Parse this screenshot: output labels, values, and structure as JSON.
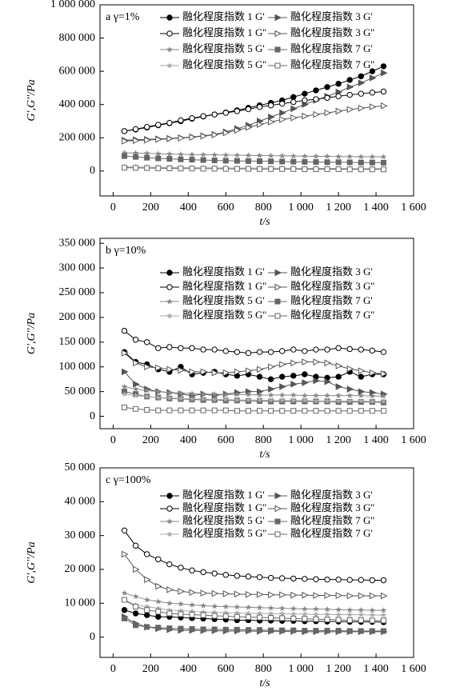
{
  "chart_data": [
    {
      "type": "line",
      "panel_label": "a γ=1%",
      "x_label": "t/s",
      "y_label": "G',G''/Pa",
      "x": [
        60,
        120,
        180,
        240,
        300,
        360,
        420,
        480,
        540,
        600,
        660,
        720,
        780,
        840,
        900,
        960,
        1020,
        1080,
        1140,
        1200,
        1260,
        1320,
        1380,
        1440
      ],
      "xlim": [
        -70,
        1600
      ],
      "ylim": [
        -150000,
        1000000
      ],
      "xticks": [
        0,
        200,
        400,
        600,
        800,
        {
          "value": 1000,
          "label": "1 000"
        },
        {
          "value": 1200,
          "label": "1 200"
        },
        {
          "value": 1400,
          "label": "1 400"
        },
        {
          "value": 1600,
          "label": "1 600"
        }
      ],
      "yticks": [
        0,
        {
          "value": 200000,
          "label": "200 000"
        },
        {
          "value": 400000,
          "label": "400 000"
        },
        {
          "value": 600000,
          "label": "600 000"
        },
        {
          "value": 800000,
          "label": "800 000"
        },
        {
          "value": 1000000,
          "label": "1 000 000"
        }
      ],
      "series": [
        {
          "name": "融化程度指数 1 G'",
          "color": "#000000",
          "marker": "circle",
          "filled": true,
          "values": [
            240000,
            250000,
            262000,
            275000,
            288000,
            300000,
            315000,
            328000,
            340000,
            352000,
            365000,
            380000,
            395000,
            410000,
            425000,
            445000,
            465000,
            485000,
            505000,
            525000,
            548000,
            570000,
            600000,
            630000
          ]
        },
        {
          "name": "融化程度指数 3 G'",
          "color": "#555555",
          "marker": "triangle",
          "filled": true,
          "values": [
            185000,
            188000,
            190000,
            193000,
            196000,
            200000,
            205000,
            212000,
            220000,
            235000,
            255000,
            275000,
            300000,
            325000,
            350000,
            375000,
            400000,
            425000,
            450000,
            475000,
            505000,
            530000,
            560000,
            590000
          ]
        },
        {
          "name": "融化程度指数 1 G''",
          "color": "#000000",
          "marker": "circle",
          "filled": false,
          "values": [
            240000,
            252000,
            265000,
            278000,
            290000,
            305000,
            318000,
            330000,
            340000,
            350000,
            360000,
            372000,
            385000,
            395000,
            405000,
            415000,
            425000,
            432000,
            440000,
            450000,
            458000,
            465000,
            472000,
            478000
          ]
        },
        {
          "name": "融化程度指数 3 G''",
          "color": "#555555",
          "marker": "triangle",
          "filled": false,
          "values": [
            180000,
            183000,
            186000,
            190000,
            194000,
            198000,
            203000,
            210000,
            218000,
            230000,
            245000,
            262000,
            280000,
            295000,
            310000,
            320000,
            330000,
            340000,
            350000,
            360000,
            370000,
            378000,
            386000,
            392000
          ]
        },
        {
          "name": "融化程度指数 5 G'",
          "color": "#888888",
          "marker": "star",
          "filled": true,
          "values": [
            110000,
            108000,
            106000,
            104000,
            102000,
            100000,
            99000,
            98000,
            97000,
            96000,
            95000,
            94000,
            93000,
            92000,
            91000,
            90000,
            89000,
            88000,
            88000,
            87000,
            87000,
            86000,
            86000,
            85000
          ]
        },
        {
          "name": "融化程度指数 7 G'",
          "color": "#666666",
          "marker": "square",
          "filled": true,
          "values": [
            90000,
            85000,
            80000,
            76000,
            73000,
            70000,
            68000,
            66000,
            64000,
            62000,
            61000,
            60000,
            59000,
            58000,
            57000,
            56000,
            55000,
            54000,
            53000,
            53000,
            52000,
            51000,
            51000,
            50000
          ]
        },
        {
          "name": "融化程度指数 5 G''",
          "color": "#aaaaaa",
          "marker": "star",
          "filled": true,
          "values": [
            25000,
            24000,
            23000,
            22000,
            21000,
            21000,
            20000,
            20000,
            19000,
            19000,
            18000,
            18000,
            18000,
            17000,
            17000,
            17000,
            16000,
            16000,
            16000,
            16000,
            15000,
            15000,
            15000,
            15000
          ]
        },
        {
          "name": "融化程度指数 7 G''",
          "color": "#666666",
          "marker": "square",
          "filled": false,
          "values": [
            20000,
            19000,
            18000,
            17000,
            16000,
            15000,
            15000,
            14000,
            14000,
            13000,
            13000,
            13000,
            12000,
            12000,
            12000,
            12000,
            11000,
            11000,
            11000,
            11000,
            10000,
            10000,
            10000,
            10000
          ]
        }
      ]
    },
    {
      "type": "line",
      "panel_label": "b γ=10%",
      "x_label": "t/s",
      "y_label": "G',G''/Pa",
      "x": [
        60,
        120,
        180,
        240,
        300,
        360,
        420,
        480,
        540,
        600,
        660,
        720,
        780,
        840,
        900,
        960,
        1020,
        1080,
        1140,
        1200,
        1260,
        1320,
        1380,
        1440
      ],
      "xlim": [
        -70,
        1600
      ],
      "ylim": [
        -25000,
        360000
      ],
      "xticks": [
        0,
        200,
        400,
        600,
        800,
        {
          "value": 1000,
          "label": "1 000"
        },
        {
          "value": 1200,
          "label": "1 200"
        },
        {
          "value": 1400,
          "label": "1 400"
        },
        {
          "value": 1600,
          "label": "1 600"
        }
      ],
      "yticks": [
        0,
        {
          "value": 50000,
          "label": "50 000"
        },
        {
          "value": 100000,
          "label": "100 000"
        },
        {
          "value": 150000,
          "label": "150 000"
        },
        {
          "value": 200000,
          "label": "200 000"
        },
        {
          "value": 250000,
          "label": "250 000"
        },
        {
          "value": 300000,
          "label": "300 000"
        },
        {
          "value": 350000,
          "label": "350 000"
        }
      ],
      "series": [
        {
          "name": "融化程度指数 1 G'",
          "color": "#000000",
          "marker": "circle",
          "filled": true,
          "values": [
            130000,
            110000,
            105000,
            95000,
            90000,
            100000,
            85000,
            88000,
            90000,
            85000,
            82000,
            85000,
            80000,
            75000,
            80000,
            82000,
            85000,
            80000,
            78000,
            80000,
            90000,
            80000,
            85000,
            85000
          ]
        },
        {
          "name": "融化程度指数 3 G'",
          "color": "#555555",
          "marker": "triangle",
          "filled": true,
          "values": [
            90000,
            65000,
            55000,
            50000,
            48000,
            45000,
            42000,
            45000,
            42000,
            45000,
            48000,
            50000,
            50000,
            55000,
            60000,
            65000,
            68000,
            72000,
            70000,
            60000,
            55000,
            50000,
            48000,
            45000
          ]
        },
        {
          "name": "融化程度指数 1 G''",
          "color": "#000000",
          "marker": "circle",
          "filled": false,
          "values": [
            173000,
            155000,
            150000,
            138000,
            140000,
            138000,
            138000,
            135000,
            135000,
            132000,
            130000,
            128000,
            130000,
            130000,
            132000,
            135000,
            132000,
            135000,
            135000,
            138000,
            136000,
            135000,
            133000,
            130000
          ]
        },
        {
          "name": "融化程度指数 3 G''",
          "color": "#555555",
          "marker": "triangle",
          "filled": false,
          "values": [
            128000,
            108000,
            100000,
            98000,
            95000,
            93000,
            90000,
            90000,
            88000,
            88000,
            90000,
            92000,
            95000,
            100000,
            105000,
            108000,
            110000,
            110000,
            108000,
            102000,
            96000,
            92000,
            88000,
            86000
          ]
        },
        {
          "name": "融化程度指数 5 G'",
          "color": "#888888",
          "marker": "star",
          "filled": true,
          "values": [
            60000,
            55000,
            52000,
            50000,
            48000,
            47000,
            46000,
            45000,
            45000,
            44000,
            44000,
            44000,
            43000,
            43000,
            43000,
            43000,
            42000,
            42000,
            42000,
            42000,
            42000,
            42000,
            41000,
            41000
          ]
        },
        {
          "name": "融化程度指数 7 G'",
          "color": "#666666",
          "marker": "square",
          "filled": true,
          "values": [
            50000,
            45000,
            40000,
            38000,
            36000,
            35000,
            34000,
            33000,
            33000,
            32000,
            32000,
            31000,
            31000,
            30000,
            30000,
            30000,
            30000,
            30000,
            30000,
            29000,
            29000,
            29000,
            29000,
            28000
          ]
        },
        {
          "name": "融化程度指数 5 G''",
          "color": "#aaaaaa",
          "marker": "star",
          "filled": true,
          "values": [
            45000,
            42000,
            40000,
            38000,
            37000,
            36000,
            35000,
            35000,
            34000,
            34000,
            33000,
            33000,
            33000,
            32000,
            32000,
            32000,
            32000,
            31000,
            31000,
            31000,
            31000,
            31000,
            30000,
            30000
          ]
        },
        {
          "name": "融化程度指数 7 G''",
          "color": "#666666",
          "marker": "square",
          "filled": false,
          "values": [
            18000,
            15000,
            13000,
            12000,
            12000,
            12000,
            12000,
            12000,
            12000,
            12000,
            11000,
            11000,
            11000,
            11000,
            11000,
            11000,
            11000,
            11000,
            11000,
            11000,
            11000,
            11000,
            11000,
            11000
          ]
        }
      ]
    },
    {
      "type": "line",
      "panel_label": "c γ=100%",
      "x_label": "t/s",
      "y_label": "G',G''/Pa",
      "x": [
        60,
        120,
        180,
        240,
        300,
        360,
        420,
        480,
        540,
        600,
        660,
        720,
        780,
        840,
        900,
        960,
        1020,
        1080,
        1140,
        1200,
        1260,
        1320,
        1380,
        1440
      ],
      "xlim": [
        -70,
        1600
      ],
      "ylim": [
        -6000,
        50000
      ],
      "xticks": [
        0,
        200,
        400,
        600,
        800,
        {
          "value": 1000,
          "label": "1 000"
        },
        {
          "value": 1200,
          "label": "1 200"
        },
        {
          "value": 1400,
          "label": "1 400"
        },
        {
          "value": 1600,
          "label": "1 600"
        }
      ],
      "yticks": [
        0,
        {
          "value": 10000,
          "label": "10 000"
        },
        {
          "value": 20000,
          "label": "20 000"
        },
        {
          "value": 30000,
          "label": "30 000"
        },
        {
          "value": 40000,
          "label": "40 000"
        },
        {
          "value": 50000,
          "label": "50 000"
        }
      ],
      "series": [
        {
          "name": "融化程度指数 1 G'",
          "color": "#000000",
          "marker": "circle",
          "filled": true,
          "values": [
            8000,
            7000,
            6500,
            6000,
            6000,
            5800,
            5600,
            5500,
            5300,
            5200,
            5000,
            5000,
            4900,
            4900,
            4800,
            4800,
            4700,
            4700,
            4600,
            4600,
            4500,
            4500,
            4500,
            4400
          ]
        },
        {
          "name": "融化程度指数 3 G'",
          "color": "#555555",
          "marker": "triangle",
          "filled": true,
          "values": [
            6000,
            4000,
            3000,
            2500,
            2200,
            2000,
            2000,
            1900,
            1900,
            1800,
            1800,
            1800,
            1700,
            1700,
            1700,
            1700,
            1600,
            1600,
            1600,
            1600,
            1600,
            1600,
            1600,
            1600
          ]
        },
        {
          "name": "融化程度指数 1 G''",
          "color": "#000000",
          "marker": "circle",
          "filled": false,
          "values": [
            31500,
            27000,
            24500,
            23000,
            21500,
            20500,
            19700,
            19200,
            18800,
            18400,
            18100,
            17900,
            17700,
            17500,
            17400,
            17300,
            17200,
            17100,
            17000,
            17000,
            16900,
            16900,
            16800,
            16800
          ]
        },
        {
          "name": "融化程度指数 3 G''",
          "color": "#555555",
          "marker": "triangle",
          "filled": false,
          "values": [
            24500,
            20000,
            17000,
            15000,
            14000,
            13500,
            13200,
            13000,
            12900,
            12800,
            12700,
            12600,
            12600,
            12500,
            12500,
            12400,
            12400,
            12300,
            12300,
            12300,
            12200,
            12200,
            12200,
            12200
          ]
        },
        {
          "name": "融化程度指数 5 G'",
          "color": "#888888",
          "marker": "star",
          "filled": true,
          "values": [
            13000,
            12000,
            11000,
            10500,
            10000,
            9800,
            9500,
            9300,
            9100,
            9000,
            8900,
            8800,
            8700,
            8600,
            8500,
            8400,
            8300,
            8300,
            8200,
            8100,
            8000,
            8000,
            7900,
            7900
          ]
        },
        {
          "name": "融化程度指数 7 G''",
          "color": "#666666",
          "marker": "square",
          "filled": true,
          "values": [
            5500,
            3500,
            3000,
            2800,
            2600,
            2500,
            2400,
            2300,
            2300,
            2200,
            2200,
            2100,
            2100,
            2000,
            2000,
            2000,
            1900,
            1900,
            1900,
            1900,
            1800,
            1800,
            1800,
            1800
          ]
        },
        {
          "name": "融化程度指数 5 G''",
          "color": "#aaaaaa",
          "marker": "star",
          "filled": true,
          "values": [
            11000,
            9500,
            9000,
            8500,
            8000,
            7800,
            7600,
            7400,
            7300,
            7200,
            7100,
            7000,
            7000,
            6900,
            6900,
            6800,
            6800,
            6700,
            6700,
            6600,
            6600,
            6600,
            6500,
            6500
          ]
        },
        {
          "name": "融化程度指数 7 G'",
          "color": "#666666",
          "marker": "square",
          "filled": false,
          "values": [
            11000,
            9000,
            8000,
            7500,
            7000,
            6800,
            6600,
            6500,
            6300,
            6200,
            6000,
            5900,
            5800,
            5700,
            5600,
            5500,
            5400,
            5300,
            5200,
            5100,
            5000,
            5000,
            4900,
            4900
          ]
        }
      ]
    }
  ]
}
